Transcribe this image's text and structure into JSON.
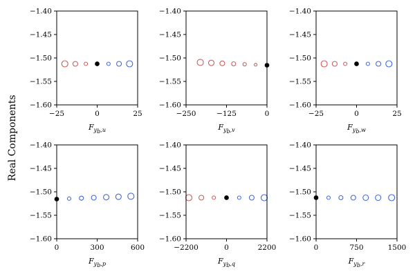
{
  "figure": {
    "ylabel": "Real Components"
  },
  "colors": {
    "negative": "#cd5c5c",
    "positive": "#4169e1",
    "origin": "#000000"
  },
  "chart_data": [
    {
      "type": "scatter",
      "xlabel_main": "F",
      "xlabel_sub1": "y",
      "xlabel_sub1b": "b",
      "xlabel_sub2": "u",
      "xlim": [
        -25,
        25
      ],
      "xticks": [
        "−25",
        "0",
        "25"
      ],
      "xtick_values": [
        -25,
        0,
        25
      ],
      "ylim": [
        -1.6,
        -1.4
      ],
      "yticks": [
        "−1.40",
        "−1.45",
        "−1.50",
        "−1.55",
        "−1.60"
      ],
      "ytick_values": [
        -1.4,
        -1.45,
        -1.5,
        -1.55,
        -1.6
      ],
      "points": [
        {
          "x": -20,
          "y": -1.5125,
          "size": 9,
          "color": "negative"
        },
        {
          "x": -13.5,
          "y": -1.5125,
          "size": 7,
          "color": "negative"
        },
        {
          "x": -7,
          "y": -1.5125,
          "size": 5,
          "color": "negative"
        },
        {
          "x": 0,
          "y": -1.5125,
          "size": 6,
          "color": "origin"
        },
        {
          "x": 7,
          "y": -1.5125,
          "size": 5,
          "color": "positive"
        },
        {
          "x": 13.5,
          "y": -1.5125,
          "size": 7,
          "color": "positive"
        },
        {
          "x": 20,
          "y": -1.5125,
          "size": 9,
          "color": "positive"
        }
      ]
    },
    {
      "type": "scatter",
      "xlabel_main": "F",
      "xlabel_sub1": "y",
      "xlabel_sub1b": "b",
      "xlabel_sub2": "v",
      "xlim": [
        -250,
        0
      ],
      "xticks": [
        "−250",
        "−125",
        "0"
      ],
      "xtick_values": [
        -250,
        -125,
        0
      ],
      "ylim": [
        -1.6,
        -1.4
      ],
      "yticks": [
        "−1.40",
        "−1.45",
        "−1.50",
        "−1.55",
        "−1.60"
      ],
      "ytick_values": [
        -1.4,
        -1.45,
        -1.5,
        -1.55,
        -1.6
      ],
      "points": [
        {
          "x": -206,
          "y": -1.5095,
          "size": 9,
          "color": "negative"
        },
        {
          "x": -172,
          "y": -1.5105,
          "size": 8,
          "color": "negative"
        },
        {
          "x": -138,
          "y": -1.5115,
          "size": 7,
          "color": "negative"
        },
        {
          "x": -103,
          "y": -1.5125,
          "size": 6,
          "color": "negative"
        },
        {
          "x": -69,
          "y": -1.5135,
          "size": 5,
          "color": "negative"
        },
        {
          "x": -35,
          "y": -1.5145,
          "size": 4,
          "color": "negative"
        },
        {
          "x": 0,
          "y": -1.5155,
          "size": 6,
          "color": "origin"
        }
      ]
    },
    {
      "type": "scatter",
      "xlabel_main": "F",
      "xlabel_sub1": "y",
      "xlabel_sub1b": "b",
      "xlabel_sub2": "w",
      "xlim": [
        -25,
        25
      ],
      "xticks": [
        "−25",
        "0",
        "25"
      ],
      "xtick_values": [
        -25,
        0,
        25
      ],
      "ylim": [
        -1.6,
        -1.4
      ],
      "yticks": [
        "−1.40",
        "−1.45",
        "−1.50",
        "−1.55",
        "−1.60"
      ],
      "ytick_values": [
        -1.4,
        -1.45,
        -1.5,
        -1.55,
        -1.6
      ],
      "points": [
        {
          "x": -20,
          "y": -1.5125,
          "size": 9,
          "color": "negative"
        },
        {
          "x": -13.5,
          "y": -1.5125,
          "size": 7,
          "color": "negative"
        },
        {
          "x": -7,
          "y": -1.5125,
          "size": 5,
          "color": "negative"
        },
        {
          "x": 0,
          "y": -1.5125,
          "size": 6,
          "color": "origin"
        },
        {
          "x": 7,
          "y": -1.5125,
          "size": 5,
          "color": "positive"
        },
        {
          "x": 13.5,
          "y": -1.5125,
          "size": 7,
          "color": "positive"
        },
        {
          "x": 20,
          "y": -1.5125,
          "size": 9,
          "color": "positive"
        }
      ]
    },
    {
      "type": "scatter",
      "xlabel_main": "F",
      "xlabel_sub1": "y",
      "xlabel_sub1b": "b",
      "xlabel_sub2": "p",
      "xlim": [
        0,
        600
      ],
      "xticks": [
        "0",
        "300",
        "600"
      ],
      "xtick_values": [
        0,
        300,
        600
      ],
      "ylim": [
        -1.6,
        -1.4
      ],
      "yticks": [
        "−1.40",
        "−1.45",
        "−1.50",
        "−1.55",
        "−1.60"
      ],
      "ytick_values": [
        -1.4,
        -1.45,
        -1.5,
        -1.55,
        -1.6
      ],
      "points": [
        {
          "x": 0,
          "y": -1.5155,
          "size": 6,
          "color": "origin"
        },
        {
          "x": 92,
          "y": -1.5145,
          "size": 5,
          "color": "positive"
        },
        {
          "x": 183,
          "y": -1.5135,
          "size": 6,
          "color": "positive"
        },
        {
          "x": 275,
          "y": -1.5125,
          "size": 7,
          "color": "positive"
        },
        {
          "x": 367,
          "y": -1.5115,
          "size": 8,
          "color": "positive"
        },
        {
          "x": 458,
          "y": -1.5105,
          "size": 8,
          "color": "positive"
        },
        {
          "x": 550,
          "y": -1.5095,
          "size": 9,
          "color": "positive"
        }
      ]
    },
    {
      "type": "scatter",
      "xlabel_main": "F",
      "xlabel_sub1": "y",
      "xlabel_sub1b": "b",
      "xlabel_sub2": "q",
      "xlim": [
        -2200,
        2200
      ],
      "xticks": [
        "−2200",
        "0",
        "2200"
      ],
      "xtick_values": [
        -2200,
        0,
        2200
      ],
      "ylim": [
        -1.6,
        -1.4
      ],
      "yticks": [
        "−1.40",
        "−1.45",
        "−1.50",
        "−1.55",
        "−1.60"
      ],
      "ytick_values": [
        -1.4,
        -1.45,
        -1.5,
        -1.55,
        -1.6
      ],
      "points": [
        {
          "x": -2050,
          "y": -1.5125,
          "size": 9,
          "color": "negative"
        },
        {
          "x": -1370,
          "y": -1.5125,
          "size": 7,
          "color": "negative"
        },
        {
          "x": -690,
          "y": -1.5125,
          "size": 5,
          "color": "negative"
        },
        {
          "x": 0,
          "y": -1.5125,
          "size": 6,
          "color": "origin"
        },
        {
          "x": 690,
          "y": -1.5125,
          "size": 5,
          "color": "positive"
        },
        {
          "x": 1370,
          "y": -1.5125,
          "size": 7,
          "color": "positive"
        },
        {
          "x": 2050,
          "y": -1.5125,
          "size": 9,
          "color": "positive"
        }
      ]
    },
    {
      "type": "scatter",
      "xlabel_main": "F",
      "xlabel_sub1": "y",
      "xlabel_sub1b": "b",
      "xlabel_sub2": "r",
      "xlim": [
        0,
        1500
      ],
      "xticks": [
        "0",
        "750",
        "1500"
      ],
      "xtick_values": [
        0,
        750,
        1500
      ],
      "ylim": [
        -1.6,
        -1.4
      ],
      "yticks": [
        "−1.40",
        "−1.45",
        "−1.50",
        "−1.55",
        "−1.60"
      ],
      "ytick_values": [
        -1.4,
        -1.45,
        -1.5,
        -1.55,
        -1.6
      ],
      "points": [
        {
          "x": 0,
          "y": -1.5125,
          "size": 6,
          "color": "origin"
        },
        {
          "x": 230,
          "y": -1.5125,
          "size": 5,
          "color": "positive"
        },
        {
          "x": 460,
          "y": -1.5125,
          "size": 6,
          "color": "positive"
        },
        {
          "x": 690,
          "y": -1.5125,
          "size": 7,
          "color": "positive"
        },
        {
          "x": 920,
          "y": -1.5125,
          "size": 8,
          "color": "positive"
        },
        {
          "x": 1150,
          "y": -1.5125,
          "size": 8,
          "color": "positive"
        },
        {
          "x": 1400,
          "y": -1.5125,
          "size": 9,
          "color": "positive"
        }
      ]
    }
  ]
}
